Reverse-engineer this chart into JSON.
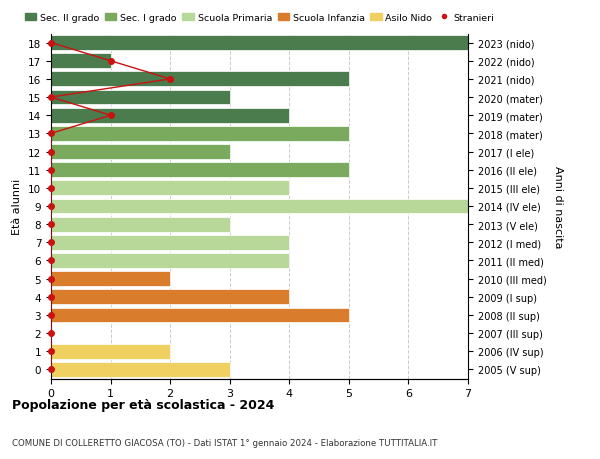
{
  "ages": [
    18,
    17,
    16,
    15,
    14,
    13,
    12,
    11,
    10,
    9,
    8,
    7,
    6,
    5,
    4,
    3,
    2,
    1,
    0
  ],
  "years": [
    "2005 (V sup)",
    "2006 (IV sup)",
    "2007 (III sup)",
    "2008 (II sup)",
    "2009 (I sup)",
    "2010 (III med)",
    "2011 (II med)",
    "2012 (I med)",
    "2013 (V ele)",
    "2014 (IV ele)",
    "2015 (III ele)",
    "2016 (II ele)",
    "2017 (I ele)",
    "2018 (mater)",
    "2019 (mater)",
    "2020 (mater)",
    "2021 (nido)",
    "2022 (nido)",
    "2023 (nido)"
  ],
  "bar_values": [
    7,
    1,
    5,
    3,
    4,
    5,
    3,
    5,
    4,
    7,
    3,
    4,
    4,
    2,
    4,
    5,
    0,
    2,
    3
  ],
  "bar_colors": [
    "#4a7c4e",
    "#4a7c4e",
    "#4a7c4e",
    "#4a7c4e",
    "#4a7c4e",
    "#7aaa5e",
    "#7aaa5e",
    "#7aaa5e",
    "#b8d89a",
    "#b8d89a",
    "#b8d89a",
    "#b8d89a",
    "#b8d89a",
    "#d97c2b",
    "#d97c2b",
    "#d97c2b",
    "#f0d060",
    "#f0d060",
    "#f0d060"
  ],
  "stranieri_dots_x": [
    0,
    1,
    2,
    0,
    1,
    0,
    0,
    0,
    0,
    0,
    0,
    0,
    0,
    0,
    0,
    0,
    0,
    0,
    0
  ],
  "legend_labels": [
    "Sec. II grado",
    "Sec. I grado",
    "Scuola Primaria",
    "Scuola Infanzia",
    "Asilo Nido",
    "Stranieri"
  ],
  "legend_colors": [
    "#4a7c4e",
    "#7aaa5e",
    "#b8d89a",
    "#d97c2b",
    "#f0d060",
    "#cc1111"
  ],
  "ylabel_left": "Età alunni",
  "ylabel_right": "Anni di nascita",
  "title": "Popolazione per età scolastica - 2024",
  "subtitle": "COMUNE DI COLLERETTO GIACOSA (TO) - Dati ISTAT 1° gennaio 2024 - Elaborazione TUTTITALIA.IT",
  "xlim": [
    0,
    7
  ],
  "stranieri_color": "#cc1111",
  "grid_color": "#cccccc",
  "bg_color": "#ffffff"
}
